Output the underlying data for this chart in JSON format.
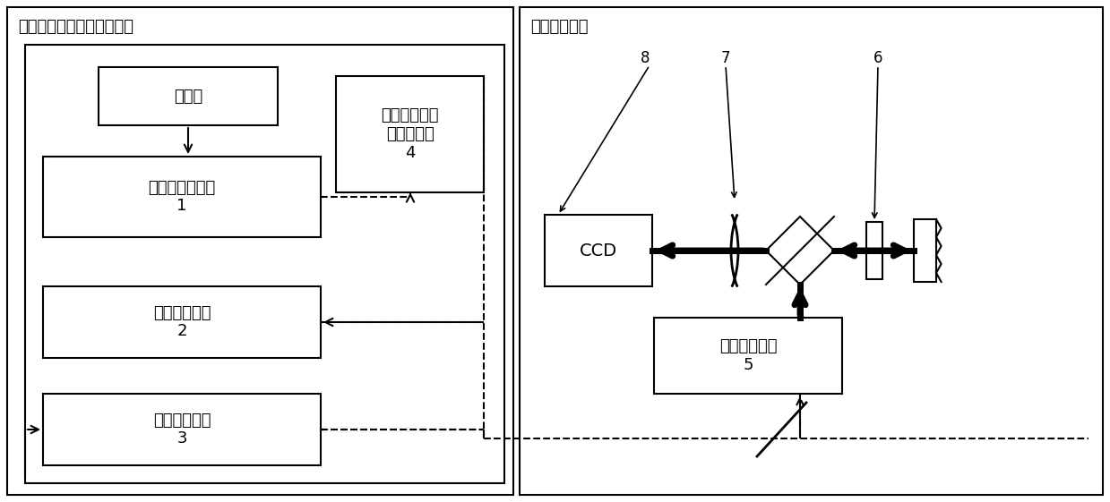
{
  "fig_width": 12.39,
  "fig_height": 5.61,
  "bg_color": "#ffffff",
  "left_title": "光频梳参考可调谐光源模块",
  "right_title": "菲索干涉模块",
  "label_atomic": "原子钟",
  "label_fscomb": "飞秒光学频率梳\n1",
  "label_wavemeter": "高精度波长计\n2",
  "label_tunable": "可调谐激光器\n3",
  "label_beat": "拍频探测及锁\n定反馈模块\n4",
  "label_pinhole": "针孔滤波扩束\n5",
  "label_ccd": "CCD"
}
